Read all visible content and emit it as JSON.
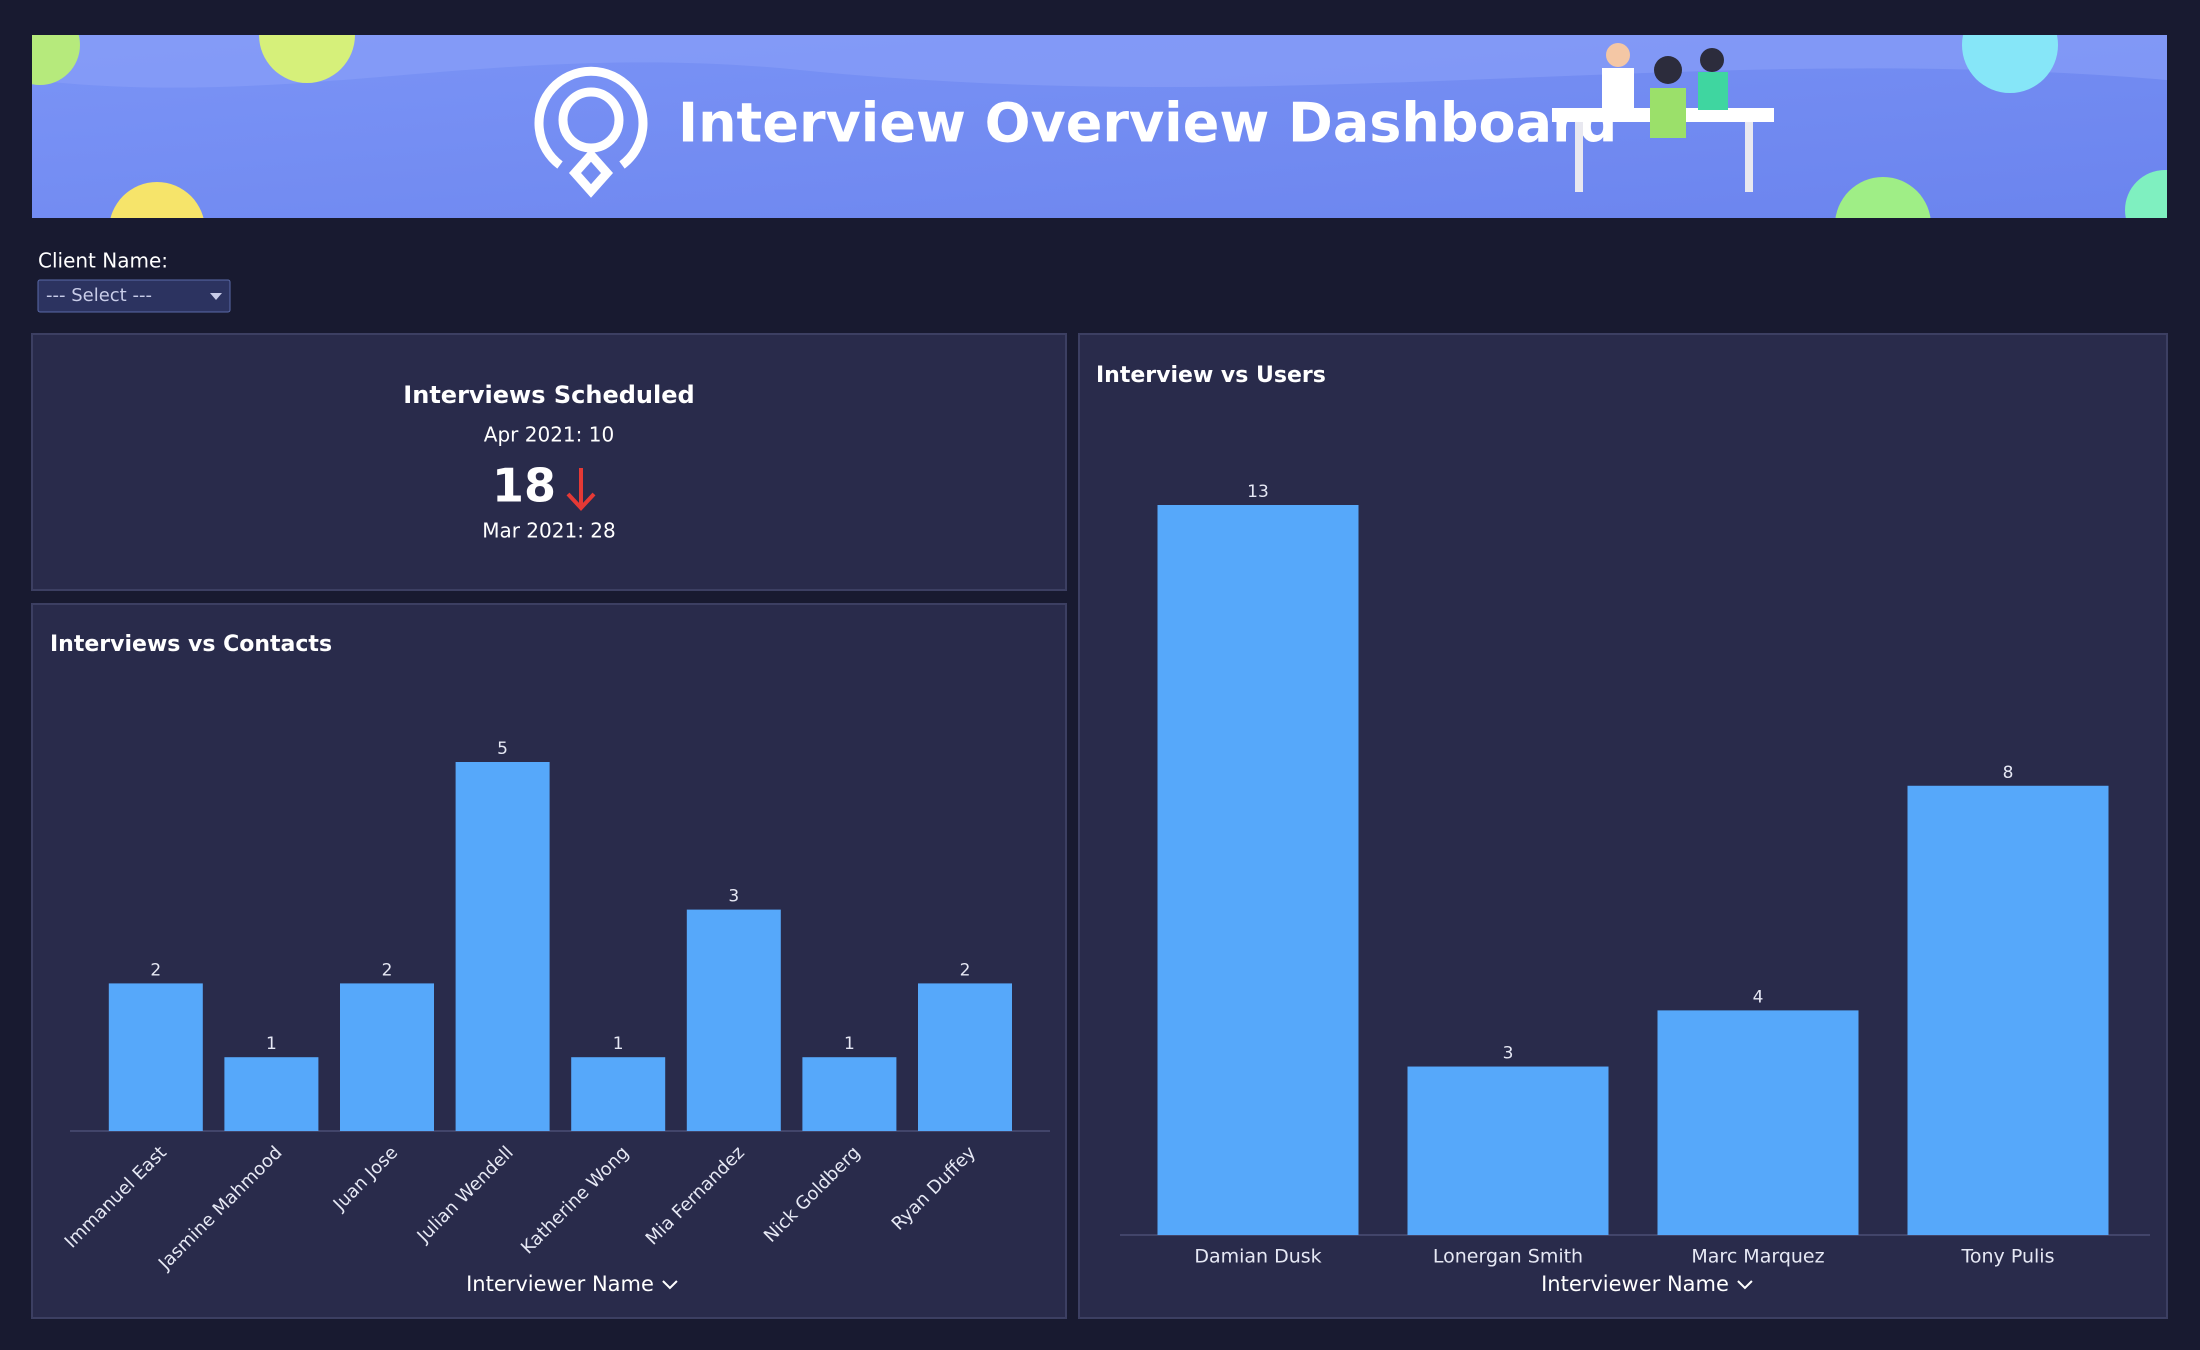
{
  "header": {
    "title": "Interview Overview Dashboard"
  },
  "filter": {
    "label": "Client Name:",
    "placeholder": "--- Select ---"
  },
  "kpi": {
    "title": "Interviews Scheduled",
    "current": "Apr 2021: 10",
    "change": 18,
    "previous": "Mar 2021: 28"
  },
  "chart_data": [
    {
      "type": "bar",
      "title": "Interviews vs Contacts",
      "x_label": "Interviewer Name",
      "color": "#56a8fa",
      "categories": [
        "Immanuel East",
        "Jasmine Mahmood",
        "Juan Jose",
        "Julian Wendell",
        "Katherine Wong",
        "Mia Fernandez",
        "Nick Goldberg",
        "Ryan Duffey"
      ],
      "values": [
        2,
        1,
        2,
        5,
        1,
        3,
        1,
        2
      ]
    },
    {
      "type": "bar",
      "title": "Interview vs Users",
      "x_label": "Interviewer Name",
      "color": "#56a8fa",
      "categories": [
        "Damian Dusk",
        "Lonergan Smith",
        "Marc Marquez",
        "Tony Pulis"
      ],
      "values": [
        13,
        3,
        4,
        8
      ]
    }
  ]
}
